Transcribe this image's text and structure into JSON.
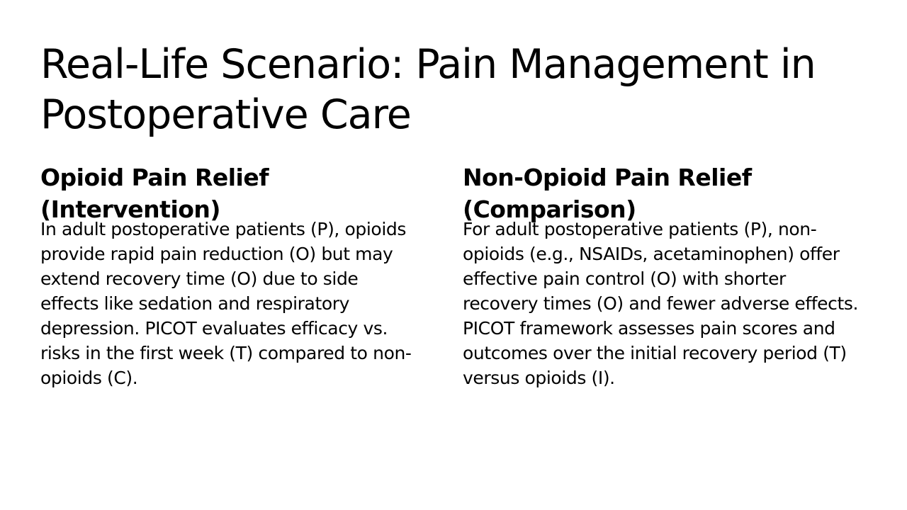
{
  "slide": {
    "title": "Real-Life Scenario: Pain Management in Postoperative Care",
    "columns": [
      {
        "heading": "Opioid Pain Relief (Intervention)",
        "body": "In adult postoperative patients (P), opioids provide rapid pain reduction (O) but may extend recovery time (O) due to side effects like sedation and respiratory depression. PICOT evaluates efficacy vs. risks in the first week (T) compared to non-opioids (C)."
      },
      {
        "heading": "Non-Opioid Pain Relief (Comparison)",
        "body": "For adult postoperative patients (P), non-opioids (e.g., NSAIDs, acetaminophen) offer effective pain control (O) with shorter recovery times (O) and fewer adverse effects. PICOT framework assesses pain scores and outcomes over the initial recovery period (T) versus opioids (I)."
      }
    ]
  }
}
